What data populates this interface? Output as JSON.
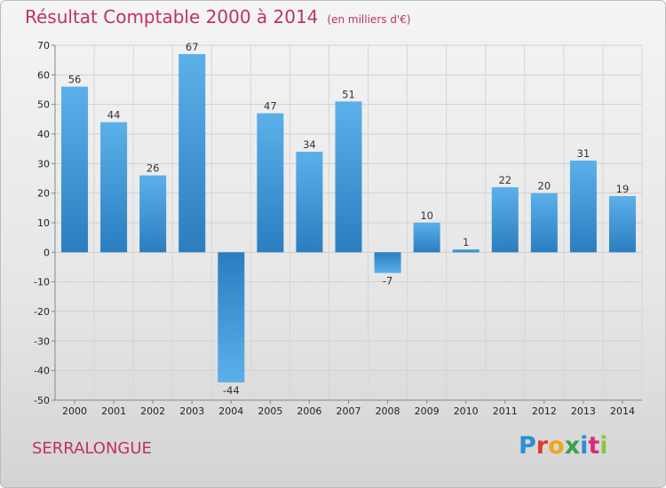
{
  "chart_data": {
    "type": "bar",
    "title": "Résultat Comptable 2000 à 2014",
    "subtitle": "(en milliers d'€)",
    "categories": [
      "2000",
      "2001",
      "2002",
      "2003",
      "2004",
      "2005",
      "2006",
      "2007",
      "2008",
      "2009",
      "2010",
      "2011",
      "2012",
      "2013",
      "2014"
    ],
    "values": [
      56,
      44,
      26,
      67,
      -44,
      47,
      34,
      51,
      -7,
      10,
      1,
      22,
      20,
      31,
      19
    ],
    "ylim": [
      -50,
      70
    ],
    "yticks": [
      -50,
      -40,
      -30,
      -20,
      -10,
      0,
      10,
      20,
      30,
      40,
      50,
      60,
      70
    ],
    "grid": true,
    "xlabel": "",
    "ylabel": "",
    "bar_colors": {
      "light": "#5aaee8",
      "dark": "#2a7ec0"
    }
  },
  "footer": {
    "commune": "SERRALONGUE",
    "logo_letters": [
      {
        "ch": "P",
        "color": "#2a8fd6"
      },
      {
        "ch": "r",
        "color": "#e03a2b"
      },
      {
        "ch": "o",
        "color": "#f2a51a"
      },
      {
        "ch": "x",
        "color": "#3aa14b"
      },
      {
        "ch": "i",
        "color": "#2a8fd6"
      },
      {
        "ch": "t",
        "color": "#e0287a"
      },
      {
        "ch": "i",
        "color": "#8cc63f"
      }
    ]
  }
}
